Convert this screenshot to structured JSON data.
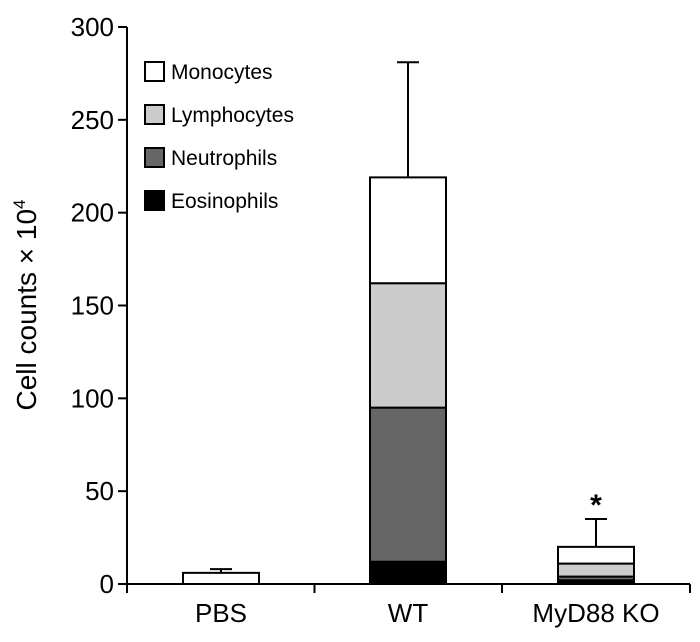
{
  "chart_data": {
    "type": "bar",
    "stacked": true,
    "title": "",
    "xlabel": "",
    "ylabel": {
      "prefix": "Cell counts × 10",
      "superscript": "4"
    },
    "ylim": [
      0,
      300
    ],
    "yticks": [
      0,
      50,
      100,
      150,
      200,
      250,
      300
    ],
    "categories": [
      "PBS",
      "WT",
      "MyD88 KO"
    ],
    "series": [
      {
        "name": "Eosinophils",
        "color": "#000000",
        "values": [
          0,
          12,
          2
        ]
      },
      {
        "name": "Neutrophils",
        "color": "#666666",
        "values": [
          0,
          83,
          2
        ]
      },
      {
        "name": "Lymphocytes",
        "color": "#cccccc",
        "values": [
          0,
          67,
          7
        ]
      },
      {
        "name": "Monocytes",
        "color": "#ffffff",
        "values": [
          6,
          57,
          9
        ]
      }
    ],
    "error_bars": [
      8,
      281,
      35
    ],
    "legend": {
      "position": "top-left",
      "order": [
        "Monocytes",
        "Lymphocytes",
        "Neutrophils",
        "Eosinophils"
      ]
    },
    "annotations": [
      {
        "category": "MyD88 KO",
        "text": "*"
      }
    ],
    "grid": false
  }
}
